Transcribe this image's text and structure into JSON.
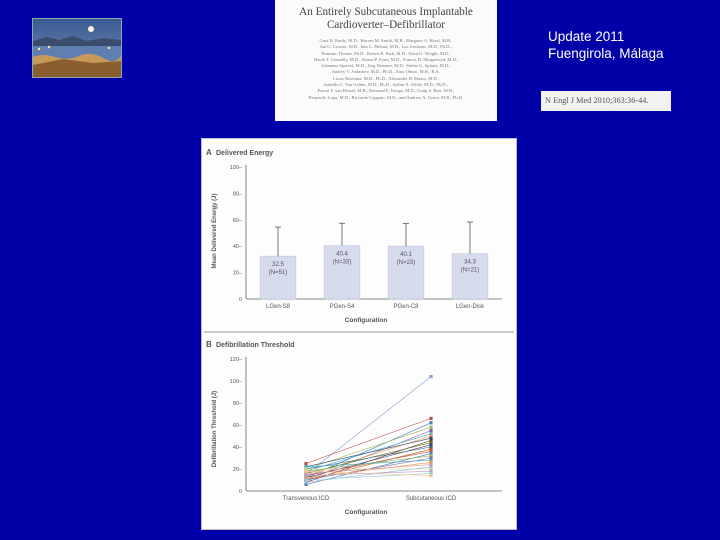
{
  "slide": {
    "update_line1": "Update 2011",
    "update_line2": "Fuengirola, Málaga",
    "background_color": "#0000a8"
  },
  "paper": {
    "title_line1": "An Entirely Subcutaneous Implantable",
    "title_line2": "Cardioverter–Defibrillator",
    "author_lines": [
      "Gust H. Bardy, M.D., Warren M. Smith, M.B., Margaret A. Hood, M.B.,",
      "Ian G. Crozier, M.B., Iain C. Melton, M.B., Luc Jordaens, M.D., Ph.D.,",
      "Dominic Theuns, Ph.D., Robert E. Park, M.D., David J. Wright, M.D.,",
      "Derek T. Connelly, M.D., Simon P. Fynn, M.D., Francis D. Murgatroyd, M.D.,",
      "Johannes Sperzel, M.D., Jörg Neuzner, M.D., Stefan G. Spitzer, M.D.,",
      "Andrey V. Ardashev, M.D., Ph.D., Amo Oduro, M.B., B.S.,",
      "Lucas Boersma, M.D., Ph.D., Alexander H. Maass, M.D.,",
      "Isabelle C. Van Gelder, M.D., Ph.D., Arthur A. Wilde, M.D., Ph.D.,",
      "Pascal F. van Dessel, M.B., Reinoud E. Knops, M.D., Craig S. Barr, M.B.,",
      "Pierpaolo Lupo, M.D., Riccardo Cappato, M.D., and Andrew A. Grace, M.B., Ph.D."
    ],
    "citation": "N Engl J Med 2010;363:36-44."
  },
  "chart_data": [
    {
      "type": "bar",
      "panel": "A",
      "title": "Delivered Energy",
      "xlabel": "Configuration",
      "ylabel": "Mean Delivered Energy (J)",
      "ylim": [
        0,
        100
      ],
      "yticks": [
        0,
        20,
        40,
        60,
        80,
        100
      ],
      "ytick_labels": [
        "0",
        "20–",
        "40–",
        "60–",
        "80–",
        "100–"
      ],
      "categories": [
        "LGen-S8",
        "PGen-S4",
        "PGen-C8",
        "LGen-Disk"
      ],
      "values": [
        32.5,
        40.4,
        40.1,
        34.3
      ],
      "errors": [
        22,
        17,
        17,
        24
      ],
      "value_labels": [
        "32.5",
        "40.4",
        "40.1",
        "34.3"
      ],
      "n_labels": [
        "(N=51)",
        "(N=33)",
        "(N=23)",
        "(N=21)"
      ],
      "bar_color": "#d6dbee"
    },
    {
      "type": "line",
      "panel": "B",
      "title": "Defibrillation Threshold",
      "xlabel": "Configuration",
      "ylabel": "Defibrillation Threshold (J)",
      "ylim": [
        0,
        120
      ],
      "yticks": [
        0,
        20,
        40,
        60,
        80,
        100,
        120
      ],
      "ytick_labels": [
        "0",
        "20–",
        "40–",
        "60–",
        "80–",
        "100–",
        "120–"
      ],
      "categories": [
        "Transvenous ICD",
        "Subcutaneous ICD"
      ],
      "series": [
        {
          "from": 15,
          "to": 104,
          "color": "#8a9ad6"
        },
        {
          "from": 25,
          "to": 66,
          "color": "#c0504d"
        },
        {
          "from": 12,
          "to": 62,
          "color": "#4f81bd"
        },
        {
          "from": 20,
          "to": 58,
          "color": "#9bbb59"
        },
        {
          "from": 10,
          "to": 55,
          "color": "#8064a2"
        },
        {
          "from": 18,
          "to": 52,
          "color": "#4bacc6"
        },
        {
          "from": 14,
          "to": 50,
          "color": "#f79646"
        },
        {
          "from": 22,
          "to": 48,
          "color": "#2c4d75"
        },
        {
          "from": 8,
          "to": 46,
          "color": "#772c2a"
        },
        {
          "from": 16,
          "to": 44,
          "color": "#5f7530"
        },
        {
          "from": 12,
          "to": 42,
          "color": "#4d3b62"
        },
        {
          "from": 20,
          "to": 40,
          "color": "#276a7c"
        },
        {
          "from": 10,
          "to": 38,
          "color": "#b65708"
        },
        {
          "from": 14,
          "to": 36,
          "color": "#c0504d"
        },
        {
          "from": 6,
          "to": 34,
          "color": "#4f81bd"
        },
        {
          "from": 18,
          "to": 32,
          "color": "#9bbb59"
        },
        {
          "from": 10,
          "to": 30,
          "color": "#8064a2"
        },
        {
          "from": 22,
          "to": 28,
          "color": "#4bacc6"
        },
        {
          "from": 12,
          "to": 26,
          "color": "#f79646"
        },
        {
          "from": 16,
          "to": 24,
          "color": "#d99694"
        },
        {
          "from": 8,
          "to": 22,
          "color": "#95b3d7"
        },
        {
          "from": 20,
          "to": 20,
          "color": "#c3d69b"
        },
        {
          "from": 14,
          "to": 18,
          "color": "#b2a1c7"
        },
        {
          "from": 10,
          "to": 16,
          "color": "#92cddc"
        },
        {
          "from": 18,
          "to": 14,
          "color": "#fac090"
        }
      ]
    }
  ]
}
